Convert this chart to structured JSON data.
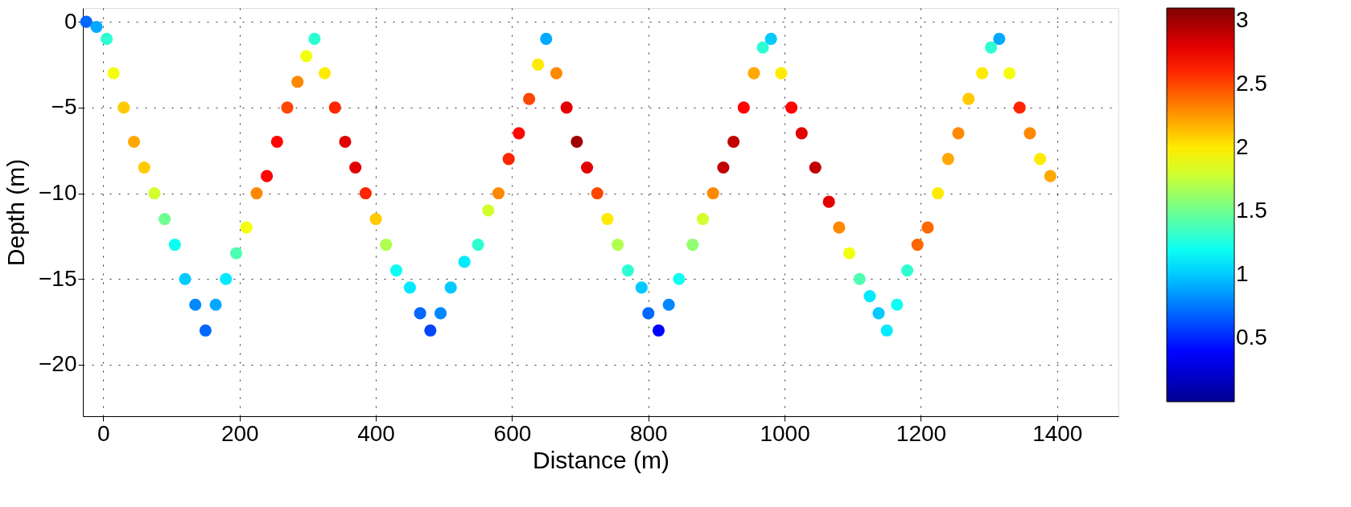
{
  "chart_data": {
    "type": "scatter",
    "xlabel": "Distance (m)",
    "ylabel": "Depth (m)",
    "xlim": [
      -30,
      1490
    ],
    "ylim": [
      -23,
      0.8
    ],
    "xticks": [
      0,
      200,
      400,
      600,
      800,
      1000,
      1200,
      1400
    ],
    "yticks": [
      -20,
      -15,
      -10,
      -5,
      0
    ],
    "clim": [
      0,
      3.1
    ],
    "cticks": [
      0.5,
      1,
      1.5,
      2,
      2.5,
      3
    ],
    "grid": true,
    "marker": "circle",
    "x": [
      -25,
      -10,
      5,
      15,
      30,
      45,
      60,
      75,
      90,
      105,
      120,
      135,
      150,
      165,
      180,
      195,
      210,
      225,
      240,
      255,
      270,
      285,
      298,
      310,
      325,
      340,
      355,
      370,
      385,
      400,
      415,
      430,
      450,
      465,
      480,
      495,
      510,
      530,
      550,
      565,
      580,
      595,
      610,
      625,
      638,
      650,
      665,
      680,
      695,
      710,
      725,
      740,
      755,
      770,
      790,
      800,
      815,
      830,
      845,
      865,
      880,
      895,
      910,
      925,
      940,
      955,
      968,
      980,
      995,
      1010,
      1025,
      1045,
      1065,
      1080,
      1095,
      1110,
      1125,
      1138,
      1150,
      1165,
      1180,
      1195,
      1210,
      1225,
      1240,
      1255,
      1270,
      1290,
      1303,
      1315,
      1330,
      1345,
      1360,
      1375,
      1390
    ],
    "values": [
      0,
      -0.3,
      -1,
      -3,
      -5,
      -7,
      -8.5,
      -10,
      -11.5,
      -13,
      -15,
      -16.5,
      -18,
      -16.5,
      -15,
      -13.5,
      -12,
      -10,
      -9,
      -7,
      -5,
      -3.5,
      -2,
      -1,
      -3,
      -5,
      -7,
      -8.5,
      -10,
      -11.5,
      -13,
      -14.5,
      -15.5,
      -17,
      -18,
      -17,
      -15.5,
      -14,
      -13,
      -11,
      -10,
      -8,
      -6.5,
      -4.5,
      -2.5,
      -1,
      -3,
      -5,
      -7,
      -8.5,
      -10,
      -11.5,
      -13,
      -14.5,
      -15.5,
      -17,
      -18,
      -16.5,
      -15,
      -13,
      -11.5,
      -10,
      -8.5,
      -7,
      -5,
      -3,
      -1.5,
      -1,
      -3,
      -5,
      -6.5,
      -8.5,
      -10.5,
      -12,
      -13.5,
      -15,
      -16,
      -17,
      -18,
      -16.5,
      -14.5,
      -13,
      -12,
      -10,
      -8,
      -6.5,
      -4.5,
      -3,
      -1.5,
      -1,
      -3,
      -5,
      -6.5,
      -8,
      -9
    ],
    "cvalues": [
      0.7,
      0.9,
      1.3,
      1.9,
      2.1,
      2.2,
      2.1,
      1.8,
      1.5,
      1.2,
      1.0,
      0.8,
      0.7,
      0.9,
      1.1,
      1.4,
      1.9,
      2.3,
      2.7,
      2.7,
      2.5,
      2.3,
      1.9,
      1.3,
      2.0,
      2.6,
      2.8,
      2.8,
      2.6,
      2.1,
      1.7,
      1.2,
      1.1,
      0.7,
      0.6,
      0.8,
      1.0,
      1.1,
      1.3,
      1.8,
      2.3,
      2.6,
      2.7,
      2.5,
      2.0,
      0.9,
      2.3,
      2.8,
      3.0,
      2.8,
      2.5,
      2.0,
      1.7,
      1.3,
      1.0,
      0.7,
      0.4,
      0.8,
      1.2,
      1.6,
      1.8,
      2.3,
      2.9,
      2.9,
      2.7,
      2.2,
      1.3,
      1.0,
      2.0,
      2.7,
      2.8,
      2.9,
      2.8,
      2.3,
      1.9,
      1.4,
      1.1,
      1.0,
      1.1,
      1.2,
      1.3,
      2.4,
      2.4,
      2.0,
      2.2,
      2.3,
      2.1,
      2.0,
      1.3,
      0.9,
      1.9,
      2.6,
      2.3,
      2.0,
      2.2
    ]
  }
}
